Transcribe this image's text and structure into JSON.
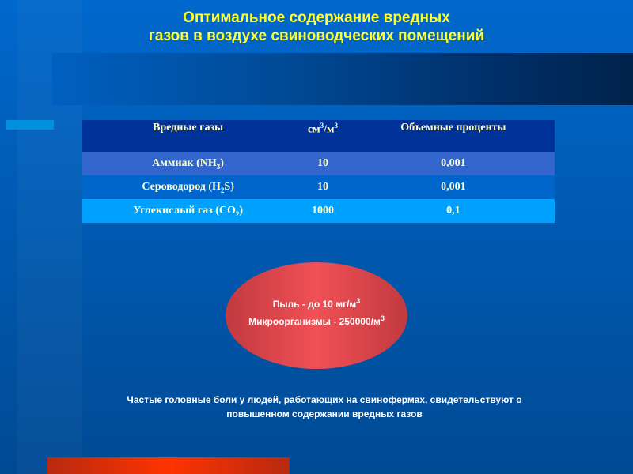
{
  "title": {
    "line1": "Оптимальное содержание вредных",
    "line2": "газов в воздухе свиноводческих помещений"
  },
  "table": {
    "headers": {
      "gas": "Вредные газы",
      "unit_base": "см",
      "unit_sup1": "3",
      "unit_mid": "/м",
      "unit_sup2": "3",
      "percent": "Объемные проценты"
    },
    "rows": [
      {
        "name": "Аммиак  (NH",
        "sub": "3",
        "close": ")",
        "value": "10",
        "percent": "0,001"
      },
      {
        "name": "Сероводород  (H",
        "sub": "2",
        "close": "S)",
        "value": "10",
        "percent": "0,001"
      },
      {
        "name": "Углекислый газ  (CO",
        "sub": "2",
        "close": ")",
        "value": "1000",
        "percent": "0,1"
      }
    ]
  },
  "ellipse": {
    "line1": "Пыль  - до 10 мг/м",
    "line1_sup": "3",
    "line2": "Микроорганизмы  - 250000/м",
    "line2_sup": "3"
  },
  "note": {
    "line1": "Частые головные боли у людей, работающих на свинофермах, свидетельствуют о",
    "line2": "повышенном содержании вредных газов"
  },
  "colors": {
    "title": "#ffff33",
    "table_header": "#003399",
    "ellipse": "#f05055",
    "accent_bar": "#ff3300"
  }
}
